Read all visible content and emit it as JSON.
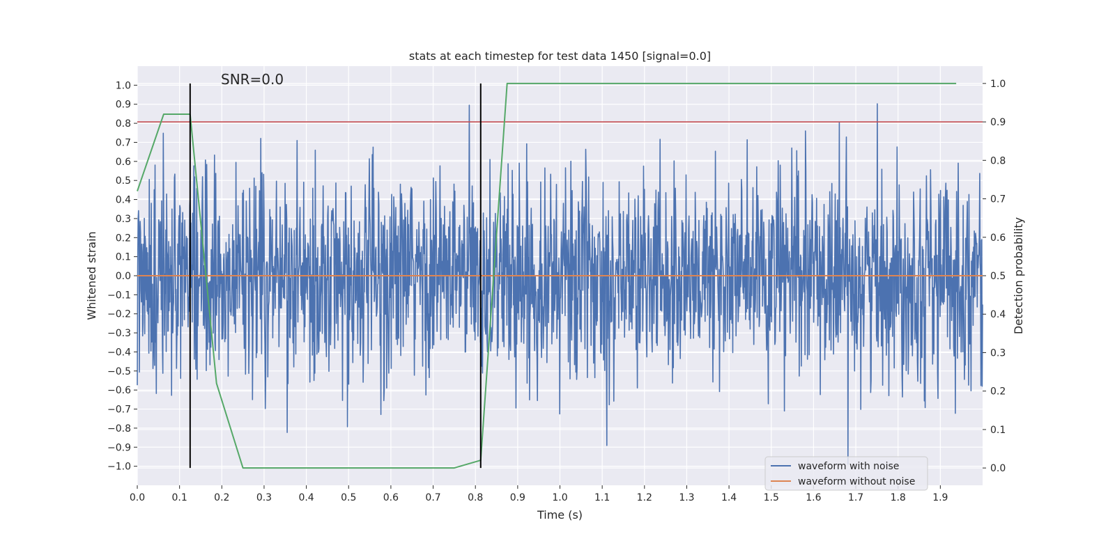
{
  "chart_data": {
    "type": "line",
    "title": "stats at each timestep for test data 1450 [signal=0.0]",
    "xlabel": "Time (s)",
    "ylabel": "Whitened strain",
    "y2label": "Detection probability",
    "xlim": [
      0.0,
      2.0
    ],
    "ylim": [
      -1.1,
      1.1
    ],
    "y2lim": [
      -0.045,
      1.045
    ],
    "x_ticks": [
      "0.0",
      "0.1",
      "0.2",
      "0.3",
      "0.4",
      "0.5",
      "0.6",
      "0.7",
      "0.8",
      "0.9",
      "1.0",
      "1.1",
      "1.2",
      "1.3",
      "1.4",
      "1.5",
      "1.6",
      "1.7",
      "1.8",
      "1.9"
    ],
    "y_ticks": [
      "1.0",
      "0.9",
      "0.8",
      "0.7",
      "0.6",
      "0.5",
      "0.4",
      "0.3",
      "0.2",
      "0.1",
      "0.0",
      "-0.1",
      "-0.2",
      "-0.3",
      "-0.4",
      "-0.5",
      "-0.6",
      "-0.7",
      "-0.8",
      "-0.9",
      "-1.0"
    ],
    "y2_ticks": [
      "1.0",
      "0.9",
      "0.8",
      "0.7",
      "0.6",
      "0.5",
      "0.4",
      "0.3",
      "0.2",
      "0.1",
      "0.0"
    ],
    "annotation": "SNR=0.0",
    "grid": true,
    "legend_position": "lower-right",
    "legend": [
      "waveform with noise",
      "waveform without noise"
    ],
    "series": [
      {
        "name": "waveform with noise",
        "color": "#4c72b0",
        "axis": "left",
        "style": "noise",
        "n_samples": 2048,
        "x_range": [
          0.0,
          2.0
        ],
        "approx_min": -1.0,
        "approx_max": 0.94
      },
      {
        "name": "waveform without noise",
        "color": "#dd8452",
        "axis": "left",
        "x": [
          0.0,
          2.0
        ],
        "y": [
          0.0,
          0.0
        ]
      },
      {
        "color": "#55a868",
        "axis": "right",
        "x": [
          0.0,
          0.0625,
          0.125,
          0.1875,
          0.25,
          0.3125,
          0.375,
          0.4375,
          0.5,
          0.5625,
          0.625,
          0.6875,
          0.75,
          0.8125,
          0.875,
          0.9375,
          1.0,
          1.0625,
          1.125,
          1.1875,
          1.25,
          1.3125,
          1.375,
          1.4375,
          1.5,
          1.5625,
          1.625,
          1.6875,
          1.75,
          1.8125,
          1.875,
          1.9375
        ],
        "y": [
          0.72,
          0.92,
          0.92,
          0.22,
          0.0,
          0.0,
          0.0,
          0.0,
          0.0,
          0.0,
          0.0,
          0.0,
          0.0,
          0.02,
          1.0,
          1.0,
          1.0,
          1.0,
          1.0,
          1.0,
          1.0,
          1.0,
          1.0,
          1.0,
          1.0,
          1.0,
          1.0,
          1.0,
          1.0,
          1.0,
          1.0,
          1.0
        ]
      }
    ],
    "threshold": {
      "color": "#c44e52",
      "axis": "right",
      "y": 0.9
    },
    "vlines": {
      "color": "#000000",
      "x": [
        0.125,
        0.8125
      ],
      "y_range": [
        0.0,
        1.0
      ]
    }
  }
}
